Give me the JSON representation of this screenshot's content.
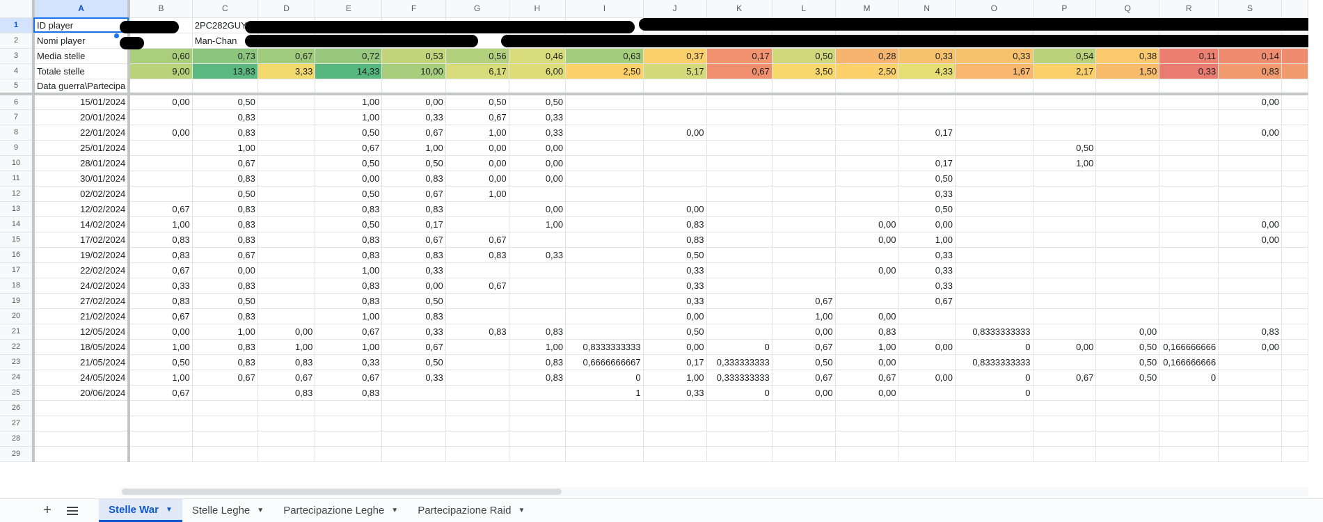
{
  "columns": [
    "A",
    "B",
    "C",
    "D",
    "E",
    "F",
    "G",
    "H",
    "I",
    "J",
    "K",
    "L",
    "M",
    "N",
    "O",
    "P",
    "Q",
    "R",
    "S"
  ],
  "header_rows": {
    "row1": {
      "label": "ID player",
      "c_value": "2PC282GUY"
    },
    "row2": {
      "label": "Nomi player",
      "c_value": "Man-Chan"
    },
    "row3": {
      "label": "Media stelle",
      "values": [
        "0,60",
        "0,73",
        "0,67",
        "0,72",
        "0,53",
        "0,56",
        "0,46",
        "0,63",
        "0,37",
        "0,17",
        "0,50",
        "0,28",
        "0,33",
        "0,33",
        "0,54",
        "0,38",
        "0,11",
        "0,14"
      ]
    },
    "row4": {
      "label": "Totale stelle",
      "values": [
        "9,00",
        "13,83",
        "3,33",
        "14,33",
        "10,00",
        "6,17",
        "6,00",
        "2,50",
        "5,17",
        "0,67",
        "3,50",
        "2,50",
        "4,33",
        "1,67",
        "2,17",
        "1,50",
        "0,33",
        "0,83"
      ]
    },
    "row5": {
      "label": "Data guerra\\Partecipa"
    }
  },
  "heat_colors": {
    "row3": [
      "#a9cf7c",
      "#8cc67e",
      "#a0cb7c",
      "#97c87d",
      "#c2d57b",
      "#b3d17c",
      "#d9dc7b",
      "#a4cd7c",
      "#fbd06a",
      "#f0936e",
      "#cfd97b",
      "#f7b46e",
      "#f8c26c",
      "#f8c26c",
      "#bad37b",
      "#fcc96c",
      "#ec7f6f",
      "#ef8c6f"
    ],
    "row4": [
      "#b9d37b",
      "#5bb97f",
      "#f2d96e",
      "#57b87f",
      "#a6ce7c",
      "#d7db79",
      "#dcdd79",
      "#fcd06a",
      "#d4da7a",
      "#ef8f6e",
      "#f6d86c",
      "#fcd06a",
      "#e6dd74",
      "#f8b66e",
      "#fbd06a",
      "#f9bc6d",
      "#ea7b70",
      "#f09a6e"
    ]
  },
  "data_rows": [
    {
      "n": "6",
      "date": "15/01/2024",
      "cells": {
        "B": "0,00",
        "C": "0,50",
        "E": "1,00",
        "F": "0,00",
        "G": "0,50",
        "H": "0,50",
        "S": "0,00"
      }
    },
    {
      "n": "7",
      "date": "20/01/2024",
      "cells": {
        "C": "0,83",
        "E": "1,00",
        "F": "0,33",
        "G": "0,67",
        "H": "0,33"
      }
    },
    {
      "n": "8",
      "date": "22/01/2024",
      "cells": {
        "B": "0,00",
        "C": "0,83",
        "E": "0,50",
        "F": "0,67",
        "G": "1,00",
        "H": "0,33",
        "J": "0,00",
        "N": "0,17",
        "S": "0,00"
      }
    },
    {
      "n": "9",
      "date": "25/01/2024",
      "cells": {
        "C": "1,00",
        "E": "0,67",
        "F": "1,00",
        "G": "0,00",
        "H": "0,00",
        "P": "0,50"
      }
    },
    {
      "n": "10",
      "date": "28/01/2024",
      "cells": {
        "C": "0,67",
        "E": "0,50",
        "F": "0,50",
        "G": "0,00",
        "H": "0,00",
        "N": "0,17",
        "P": "1,00"
      }
    },
    {
      "n": "11",
      "date": "30/01/2024",
      "cells": {
        "C": "0,83",
        "E": "0,00",
        "F": "0,83",
        "G": "0,00",
        "H": "0,00",
        "N": "0,50"
      }
    },
    {
      "n": "12",
      "date": "02/02/2024",
      "cells": {
        "C": "0,50",
        "E": "0,50",
        "F": "0,67",
        "G": "1,00",
        "N": "0,33"
      }
    },
    {
      "n": "13",
      "date": "12/02/2024",
      "cells": {
        "B": "0,67",
        "C": "0,83",
        "E": "0,83",
        "F": "0,83",
        "H": "0,00",
        "J": "0,00",
        "N": "0,50"
      }
    },
    {
      "n": "14",
      "date": "14/02/2024",
      "cells": {
        "B": "1,00",
        "C": "0,83",
        "E": "0,50",
        "F": "0,17",
        "H": "1,00",
        "J": "0,83",
        "M": "0,00",
        "N": "0,00",
        "S": "0,00"
      }
    },
    {
      "n": "15",
      "date": "17/02/2024",
      "cells": {
        "B": "0,83",
        "C": "0,83",
        "E": "0,83",
        "F": "0,67",
        "G": "0,67",
        "J": "0,83",
        "M": "0,00",
        "N": "1,00",
        "S": "0,00"
      }
    },
    {
      "n": "16",
      "date": "19/02/2024",
      "cells": {
        "B": "0,83",
        "C": "0,67",
        "E": "0,83",
        "F": "0,83",
        "G": "0,83",
        "H": "0,33",
        "J": "0,50",
        "N": "0,33"
      }
    },
    {
      "n": "17",
      "date": "22/02/2024",
      "cells": {
        "B": "0,67",
        "C": "0,00",
        "E": "1,00",
        "F": "0,33",
        "J": "0,33",
        "M": "0,00",
        "N": "0,33"
      }
    },
    {
      "n": "18",
      "date": "24/02/2024",
      "cells": {
        "B": "0,33",
        "C": "0,83",
        "E": "0,83",
        "F": "0,00",
        "G": "0,67",
        "J": "0,33",
        "N": "0,33"
      }
    },
    {
      "n": "19",
      "date": "27/02/2024",
      "cells": {
        "B": "0,83",
        "C": "0,50",
        "E": "0,83",
        "F": "0,50",
        "J": "0,33",
        "L": "0,67",
        "N": "0,67"
      }
    },
    {
      "n": "20",
      "date": "21/02/2024",
      "cells": {
        "B": "0,67",
        "C": "0,83",
        "E": "1,00",
        "F": "0,83",
        "J": "0,00",
        "L": "1,00",
        "M": "0,00"
      }
    },
    {
      "n": "21",
      "date": "12/05/2024",
      "cells": {
        "B": "0,00",
        "C": "1,00",
        "D": "0,00",
        "E": "0,67",
        "F": "0,33",
        "G": "0,83",
        "H": "0,83",
        "J": "0,50",
        "L": "0,00",
        "M": "0,83",
        "O": "0,8333333333",
        "Q": "0,00",
        "S": "0,83"
      }
    },
    {
      "n": "22",
      "date": "18/05/2024",
      "cells": {
        "B": "1,00",
        "C": "0,83",
        "D": "1,00",
        "E": "1,00",
        "F": "0,67",
        "H": "1,00",
        "I": "0,8333333333",
        "J": "0,00",
        "K": "0",
        "L": "0,67",
        "M": "1,00",
        "N": "0,00",
        "O": "0",
        "P": "0,00",
        "Q": "0,50",
        "R": "0,166666666",
        "S": "0,00"
      }
    },
    {
      "n": "23",
      "date": "21/05/2024",
      "cells": {
        "B": "0,50",
        "C": "0,83",
        "D": "0,83",
        "E": "0,33",
        "F": "0,50",
        "H": "0,83",
        "I": "0,6666666667",
        "J": "0,17",
        "K": "0,333333333",
        "L": "0,50",
        "M": "0,00",
        "O": "0,8333333333",
        "Q": "0,50",
        "R": "0,166666666"
      }
    },
    {
      "n": "24",
      "date": "24/05/2024",
      "cells": {
        "B": "1,00",
        "C": "0,67",
        "D": "0,67",
        "E": "0,67",
        "F": "0,33",
        "H": "0,83",
        "I": "0",
        "J": "1,00",
        "K": "0,333333333",
        "L": "0,67",
        "M": "0,67",
        "N": "0,00",
        "O": "0",
        "P": "0,67",
        "Q": "0,50",
        "R": "0"
      }
    },
    {
      "n": "25",
      "date": "20/06/2024",
      "cells": {
        "B": "0,67",
        "D": "0,83",
        "E": "0,83",
        "I": "1",
        "J": "0,33",
        "K": "0",
        "L": "0,00",
        "M": "0,00",
        "O": "0"
      }
    },
    {
      "n": "26",
      "date": "",
      "cells": {}
    },
    {
      "n": "27",
      "date": "",
      "cells": {}
    },
    {
      "n": "28",
      "date": "",
      "cells": {}
    },
    {
      "n": "29",
      "date": "",
      "cells": {}
    }
  ],
  "tabs": [
    {
      "label": "Stelle War",
      "active": true
    },
    {
      "label": "Stelle Leghe",
      "active": false
    },
    {
      "label": "Partecipazione Leghe",
      "active": false
    },
    {
      "label": "Partecipazione Raid",
      "active": false
    }
  ],
  "icons": {
    "add": "plus-icon",
    "all_sheets": "menu-icon",
    "caret": "caret-down-icon"
  }
}
